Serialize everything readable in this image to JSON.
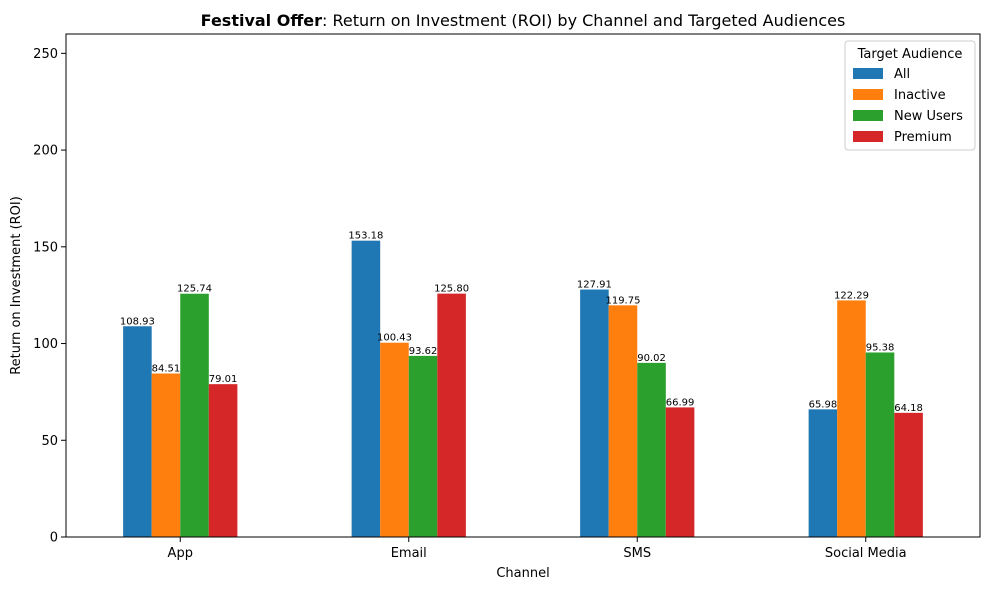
{
  "chart_data": {
    "type": "bar",
    "title_bold": "Festival Offer",
    "title_rest": ": Return on Investment (ROI) by Channel and Targeted Audiences",
    "xlabel": "Channel",
    "ylabel": "Return on Investment (ROI)",
    "ylim": [
      0,
      260
    ],
    "yticks": [
      0,
      50,
      100,
      150,
      200,
      250
    ],
    "grid": false,
    "legend_title": "Target Audience",
    "legend_position": "top-right",
    "categories": [
      "App",
      "Email",
      "SMS",
      "Social Media"
    ],
    "series": [
      {
        "name": "All",
        "color": "#1f77b4",
        "values": [
          108.93,
          153.18,
          127.91,
          65.98
        ]
      },
      {
        "name": "Inactive",
        "color": "#ff7f0e",
        "values": [
          84.51,
          100.43,
          119.75,
          122.29
        ]
      },
      {
        "name": "New Users",
        "color": "#2ca02c",
        "values": [
          125.74,
          93.62,
          90.02,
          95.38
        ]
      },
      {
        "name": "Premium",
        "color": "#d62728",
        "values": [
          79.01,
          125.8,
          66.99,
          64.18
        ]
      }
    ]
  }
}
